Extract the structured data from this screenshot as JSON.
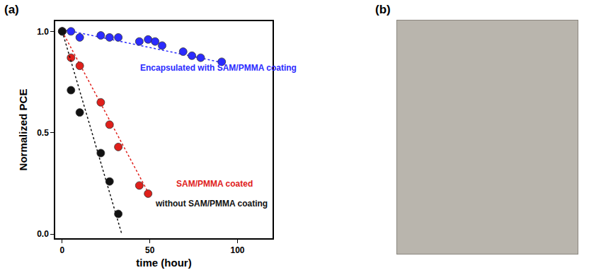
{
  "chart_data": {
    "type": "scatter",
    "panel_label": "(a)",
    "x_label": "time (hour)",
    "y_label": "Normalized PCE",
    "xlim": [
      -4,
      120
    ],
    "ylim": [
      -0.02,
      1.05
    ],
    "xticks": [
      0,
      50,
      100
    ],
    "yticks": [
      {
        "value": 0,
        "label": "0.0"
      },
      {
        "value": 0.5,
        "label": "0.5"
      },
      {
        "value": 1,
        "label": "1.0"
      }
    ],
    "grid": false,
    "series": [
      {
        "color": "#2b2bff",
        "marker": "circle",
        "line_style": "dotted",
        "x": [
          0,
          5,
          10,
          22,
          27,
          32,
          44,
          49,
          53,
          57,
          69,
          74,
          79,
          91
        ],
        "values": [
          1.0,
          1.0,
          0.97,
          0.98,
          0.97,
          0.97,
          0.95,
          0.96,
          0.95,
          0.93,
          0.9,
          0.88,
          0.87,
          0.85
        ],
        "fit": {
          "x": [
            0,
            92
          ],
          "values": [
            1.01,
            0.845
          ]
        }
      },
      {
        "color": "#e0201b",
        "marker": "circle",
        "line_style": "dotted",
        "x": [
          0,
          5,
          10,
          22,
          27,
          32,
          44,
          49
        ],
        "values": [
          1.0,
          0.87,
          0.83,
          0.65,
          0.54,
          0.43,
          0.24,
          0.2
        ],
        "fit": {
          "x": [
            0,
            50
          ],
          "values": [
            1.0,
            0.19
          ]
        }
      },
      {
        "color": "#111111",
        "marker": "circle",
        "line_style": "dotted",
        "x": [
          0,
          5,
          10,
          22,
          27,
          32
        ],
        "values": [
          1.0,
          0.71,
          0.6,
          0.4,
          0.26,
          0.1
        ],
        "fit": {
          "x": [
            0,
            34
          ],
          "values": [
            1.0,
            0.0
          ]
        }
      }
    ],
    "annotations": [
      {
        "text": "Encapsulated with SAM/PMMA coating",
        "x": 89,
        "y": 0.82,
        "color": "#2b2bff"
      },
      {
        "text": "SAM/PMMA coated",
        "x": 87,
        "y": 0.25,
        "color": "#e0201b"
      },
      {
        "text": "without SAM/PMMA coating",
        "x": 85,
        "y": 0.15,
        "color": "#111111"
      }
    ]
  },
  "photo_panel": {
    "label": "(b)"
  }
}
